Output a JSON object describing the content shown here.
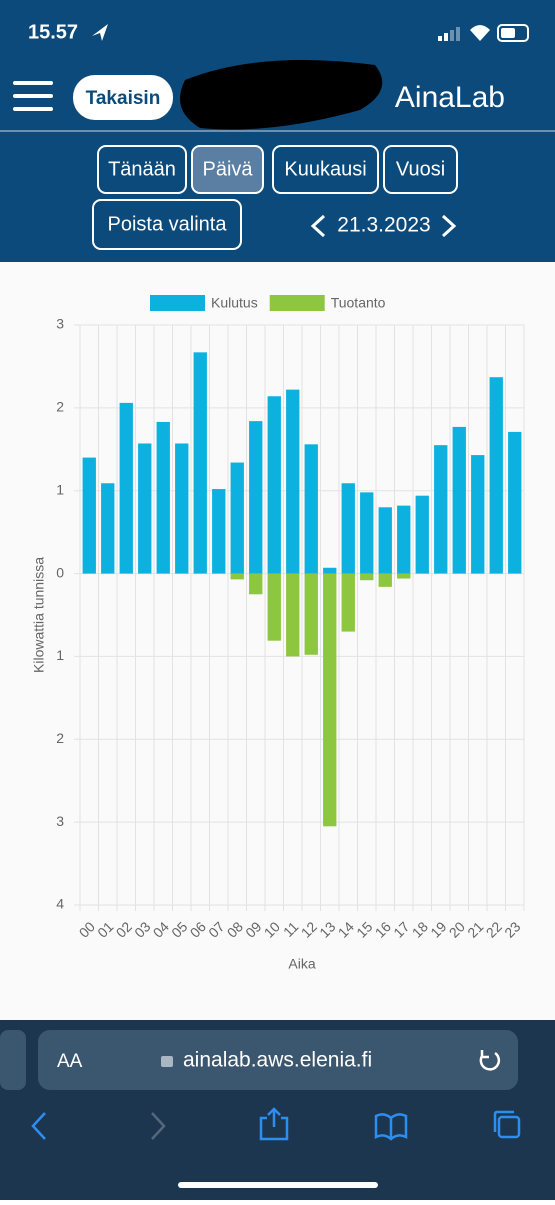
{
  "status_bar": {
    "time": "15.57"
  },
  "header": {
    "back": "Takaisin",
    "brand": "AinaLab"
  },
  "controls": {
    "buttons": [
      "Tänään",
      "Päivä",
      "Kuukausi",
      "Vuosi"
    ],
    "active": 1,
    "clear": "Poista valinta",
    "date": "21.3.2023"
  },
  "chart_data": {
    "type": "bar",
    "categories": [
      "00",
      "01",
      "02",
      "03",
      "04",
      "05",
      "06",
      "07",
      "08",
      "09",
      "10",
      "11",
      "12",
      "13",
      "14",
      "15",
      "16",
      "17",
      "18",
      "19",
      "20",
      "21",
      "22",
      "23"
    ],
    "series": [
      {
        "name": "Kulutus",
        "color": "#0db1e0",
        "values": [
          1.4,
          1.09,
          2.06,
          1.57,
          1.83,
          1.57,
          2.67,
          1.02,
          1.34,
          1.84,
          2.14,
          2.22,
          1.56,
          0.07,
          1.09,
          0.98,
          0.8,
          0.82,
          0.94,
          1.55,
          1.77,
          1.43,
          2.37,
          1.71
        ]
      },
      {
        "name": "Tuotanto",
        "color": "#8dc63f",
        "values": [
          0,
          0,
          0,
          0,
          0,
          0,
          0,
          0,
          -0.07,
          -0.25,
          -0.81,
          -1.0,
          -0.98,
          -3.05,
          -0.7,
          -0.08,
          -0.16,
          -0.06,
          0,
          0,
          0,
          0,
          0,
          0
        ]
      }
    ],
    "x_label": "Aika",
    "y_label": "Kilowattia tunnissa",
    "ylim": [
      -4,
      3
    ],
    "yticks": [
      {
        "value": -4,
        "label": "4"
      },
      {
        "value": -3,
        "label": "3"
      },
      {
        "value": -2,
        "label": "2"
      },
      {
        "value": -1,
        "label": "1"
      },
      0,
      1,
      2,
      3
    ],
    "grid": true,
    "legend": "top"
  },
  "browser": {
    "aa": "AA",
    "url": "ainalab.aws.elenia.fi"
  }
}
